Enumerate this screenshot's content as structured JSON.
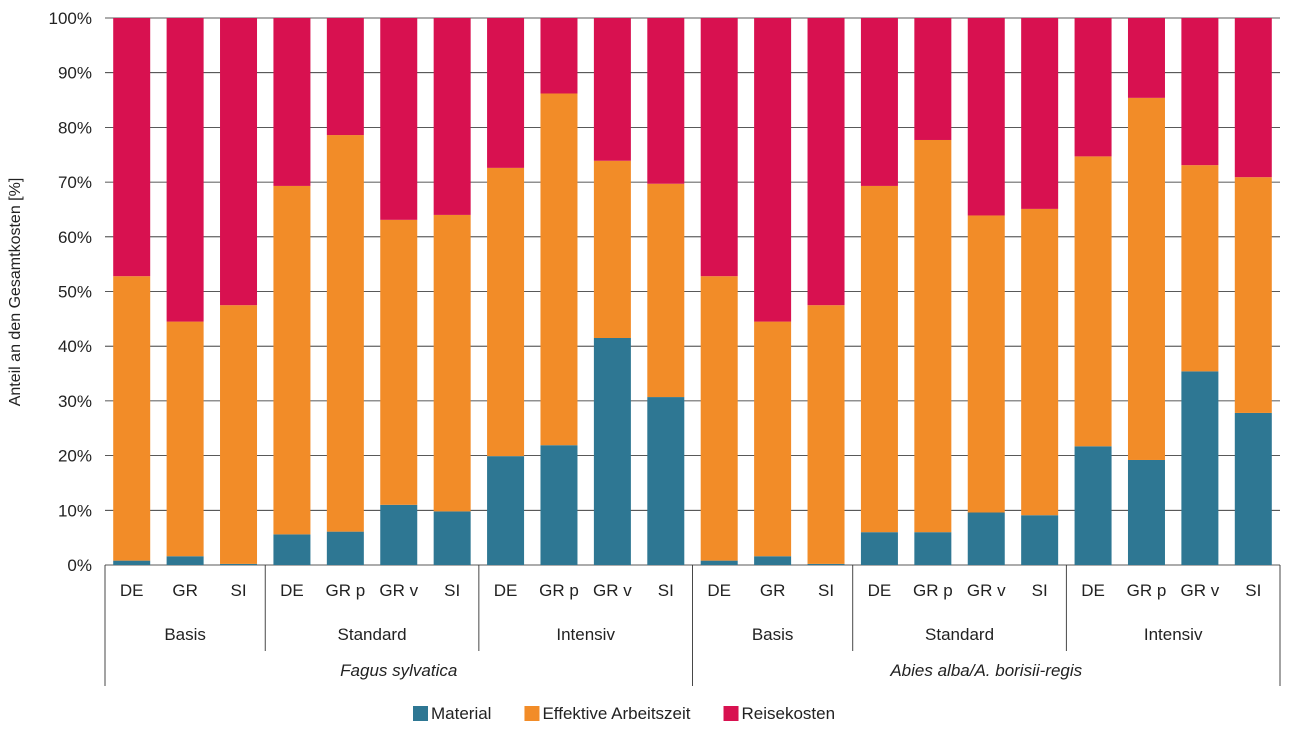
{
  "chart_data": {
    "type": "bar",
    "stacked": true,
    "normalized": true,
    "ylabel": "Anteil an den Gesamtkosten [%]",
    "ylim": [
      0,
      100
    ],
    "yticks": [
      "0%",
      "10%",
      "20%",
      "30%",
      "40%",
      "50%",
      "60%",
      "70%",
      "80%",
      "90%",
      "100%"
    ],
    "grid": true,
    "categories": [
      "DE",
      "GR",
      "SI",
      "DE",
      "GR p",
      "GR v",
      "SI",
      "DE",
      "GR p",
      "GR v",
      "SI",
      "DE",
      "GR",
      "SI",
      "DE",
      "GR p",
      "GR v",
      "SI",
      "DE",
      "GR p",
      "GR v",
      "SI"
    ],
    "level2_groups": [
      {
        "label": "Basis",
        "count": 3
      },
      {
        "label": "Standard",
        "count": 4
      },
      {
        "label": "Intensiv",
        "count": 4
      },
      {
        "label": "Basis",
        "count": 3
      },
      {
        "label": "Standard",
        "count": 4
      },
      {
        "label": "Intensiv",
        "count": 4
      }
    ],
    "level3_groups": [
      {
        "label": "Fagus sylvatica",
        "count": 11
      },
      {
        "label": "Abies alba/A. borisii-regis",
        "count": 11
      }
    ],
    "series": [
      {
        "name": "Material",
        "color": "#2e7793",
        "values": [
          0.8,
          1.6,
          0.2,
          5.6,
          6.1,
          11.0,
          9.8,
          19.9,
          21.9,
          41.5,
          30.7,
          0.8,
          1.6,
          0.2,
          6.0,
          6.0,
          9.6,
          9.1,
          21.7,
          19.2,
          35.4,
          27.8
        ]
      },
      {
        "name": "Effektive Arbeitszeit",
        "color": "#f28c28",
        "values": [
          52.0,
          42.9,
          47.3,
          63.7,
          72.5,
          52.1,
          54.2,
          52.7,
          64.3,
          32.4,
          39.0,
          52.0,
          42.9,
          47.3,
          63.3,
          71.7,
          54.3,
          56.0,
          53.0,
          66.2,
          37.7,
          43.1
        ]
      },
      {
        "name": "Reisekosten",
        "color": "#d81150",
        "values": [
          47.2,
          55.5,
          52.5,
          30.7,
          21.4,
          36.9,
          36.0,
          27.4,
          13.8,
          26.1,
          30.3,
          47.2,
          55.5,
          52.5,
          30.7,
          22.3,
          36.1,
          34.9,
          25.3,
          14.6,
          26.9,
          29.1
        ]
      }
    ],
    "legend_position": "bottom-center"
  }
}
